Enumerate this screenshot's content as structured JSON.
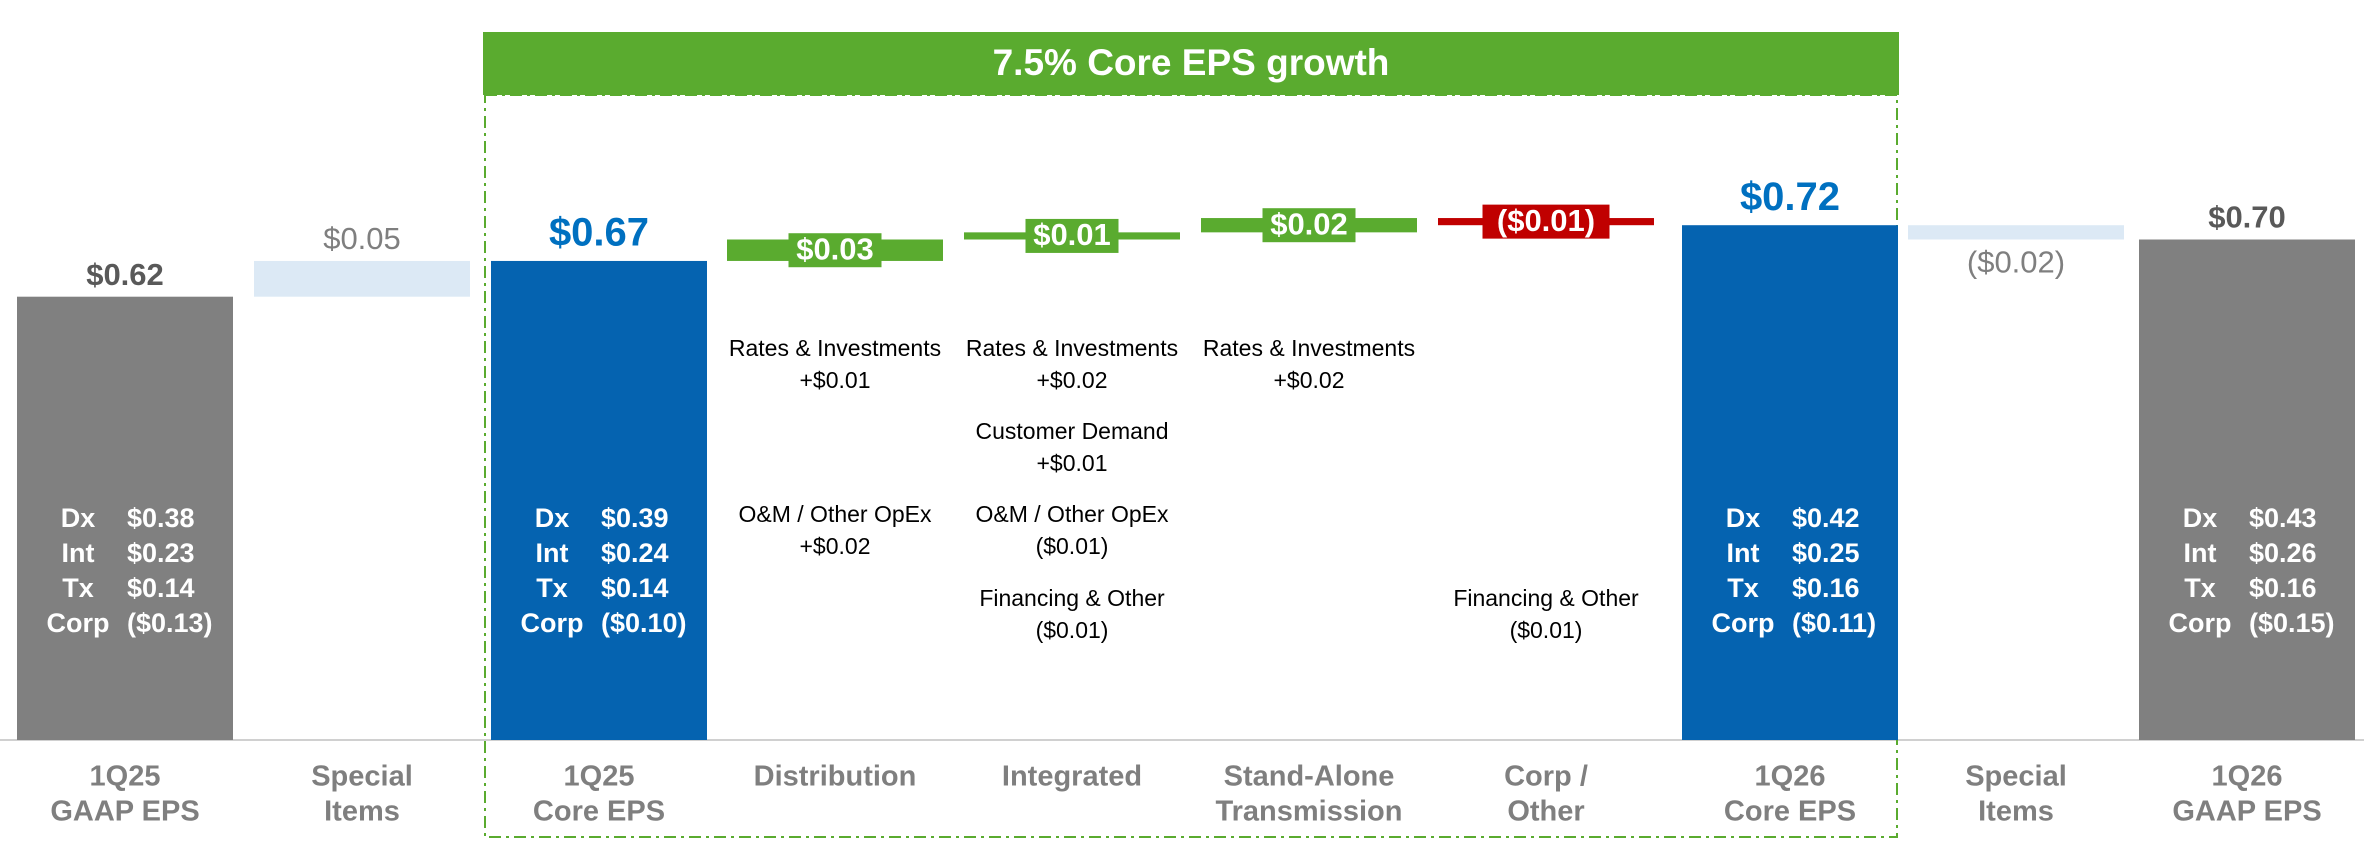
{
  "chart_data": {
    "type": "waterfall",
    "banner": "7.5% Core EPS growth",
    "categories": [
      [
        "1Q25",
        "GAAP EPS"
      ],
      [
        "Special",
        "Items"
      ],
      [
        "1Q25",
        "Core EPS"
      ],
      [
        "Distribution"
      ],
      [
        "Integrated"
      ],
      [
        "Stand-Alone",
        "Transmission"
      ],
      [
        "Corp /",
        "Other"
      ],
      [
        "1Q26",
        "Core EPS"
      ],
      [
        "Special",
        "Items"
      ],
      [
        "1Q26",
        "GAAP EPS"
      ]
    ],
    "values": [
      0.62,
      0.05,
      0.67,
      0.03,
      0.01,
      0.02,
      -0.01,
      0.72,
      -0.02,
      0.7
    ],
    "value_labels": [
      "$0.62",
      "$0.05",
      "$0.67",
      "$0.03",
      "$0.01",
      "$0.02",
      "($0.01)",
      "$0.72",
      "($0.02)",
      "$0.70"
    ],
    "measures": [
      "total",
      "relative",
      "total",
      "relative",
      "relative",
      "relative",
      "relative",
      "total",
      "relative",
      "total"
    ],
    "colors": [
      "#808080",
      "#dce9f5",
      "#0563b0",
      "#5aab2f",
      "#5aab2f",
      "#5aab2f",
      "#c00000",
      "#0563b0",
      "#dce9f5",
      "#808080"
    ],
    "components": [
      [
        {
          "name": "Dx",
          "value": 0.38,
          "value_label": "$0.38"
        },
        {
          "name": "Int",
          "value": 0.23,
          "value_label": "$0.23"
        },
        {
          "name": "Tx",
          "value": 0.14,
          "value_label": "$0.14"
        },
        {
          "name": "Corp",
          "value": -0.13,
          "value_label": "($0.13)"
        }
      ],
      null,
      [
        {
          "name": "Dx",
          "value": 0.39,
          "value_label": "$0.39"
        },
        {
          "name": "Int",
          "value": 0.24,
          "value_label": "$0.24"
        },
        {
          "name": "Tx",
          "value": 0.14,
          "value_label": "$0.14"
        },
        {
          "name": "Corp",
          "value": -0.1,
          "value_label": "($0.10)"
        }
      ],
      null,
      null,
      null,
      null,
      [
        {
          "name": "Dx",
          "value": 0.42,
          "value_label": "$0.42"
        },
        {
          "name": "Int",
          "value": 0.25,
          "value_label": "$0.25"
        },
        {
          "name": "Tx",
          "value": 0.16,
          "value_label": "$0.16"
        },
        {
          "name": "Corp",
          "value": -0.11,
          "value_label": "($0.11)"
        }
      ],
      null,
      [
        {
          "name": "Dx",
          "value": 0.43,
          "value_label": "$0.43"
        },
        {
          "name": "Int",
          "value": 0.26,
          "value_label": "$0.26"
        },
        {
          "name": "Tx",
          "value": 0.16,
          "value_label": "$0.16"
        },
        {
          "name": "Corp",
          "value": -0.15,
          "value_label": "($0.15)"
        }
      ]
    ],
    "drivers": [
      null,
      null,
      null,
      [
        {
          "name": "Rates & Investments",
          "value": 0.01,
          "value_label": "+$0.01"
        },
        {
          "name": "O&M / Other OpEx",
          "value": 0.02,
          "value_label": "+$0.02"
        }
      ],
      [
        {
          "name": "Rates & Investments",
          "value": 0.02,
          "value_label": "+$0.02"
        },
        {
          "name": "Customer Demand",
          "value": 0.01,
          "value_label": "+$0.01"
        },
        {
          "name": "O&M / Other OpEx",
          "value": -0.01,
          "value_label": "($0.01)"
        },
        {
          "name": "Financing & Other",
          "value": -0.01,
          "value_label": "($0.01)"
        }
      ],
      [
        {
          "name": "Rates & Investments",
          "value": 0.02,
          "value_label": "+$0.02"
        }
      ],
      [
        {
          "name": "Financing & Other",
          "value": -0.01,
          "value_label": "($0.01)"
        }
      ],
      null,
      null,
      null
    ]
  }
}
